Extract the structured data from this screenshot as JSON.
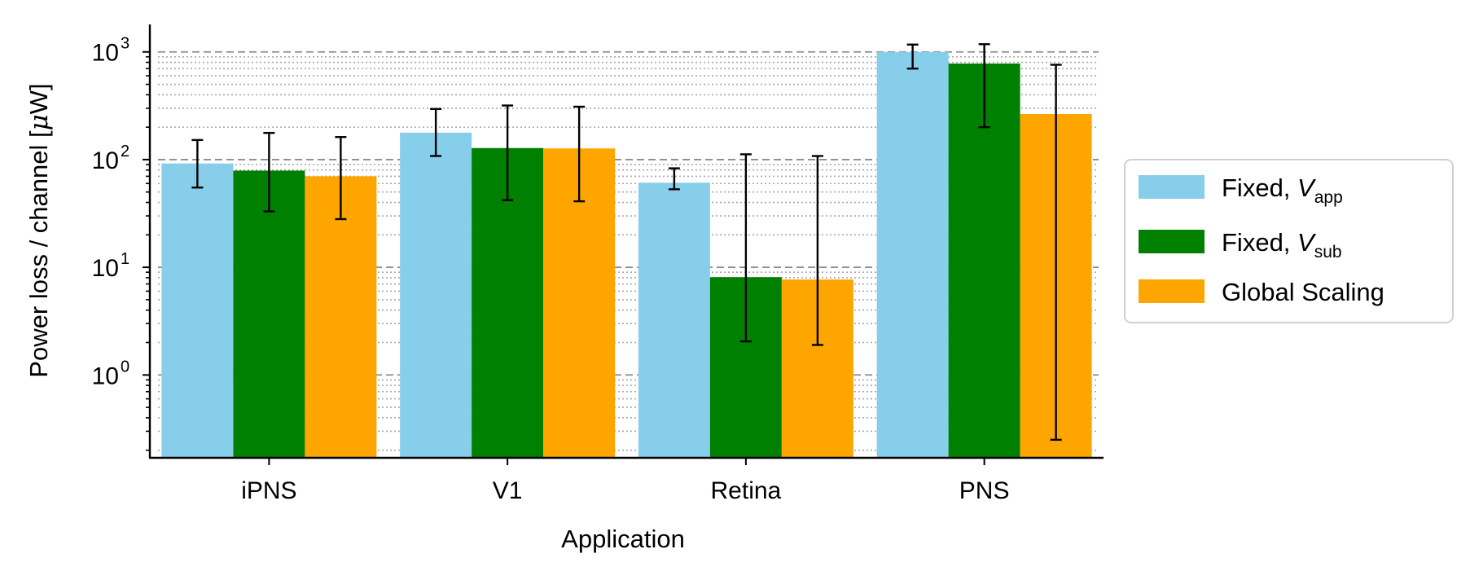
{
  "chart_data": {
    "type": "bar",
    "categories": [
      "iPNS",
      "V1",
      "Retina",
      "PNS"
    ],
    "xlabel": "Application",
    "ylabel_text": "Power loss / channel [",
    "ylabel_mu": "μ",
    "ylabel_unit": "W]",
    "yscale": "log",
    "ylim": [
      0.17,
      1800
    ],
    "ytick_base": "10",
    "ytick_exponents": [
      "0",
      "1",
      "2",
      "3"
    ],
    "grid": "major dashed, minor dotted (y)",
    "legend_position": "right, outside",
    "series": [
      {
        "name": "Fixed, ",
        "name_var": "V",
        "name_sub": "app",
        "color": "#87CEEB",
        "values": [
          92,
          178,
          61,
          1000
        ],
        "err_low": [
          55,
          108,
          53,
          700
        ],
        "err_high": [
          152,
          295,
          83,
          1170
        ]
      },
      {
        "name": "Fixed, ",
        "name_var": "V",
        "name_sub": "sub",
        "color": "#008000",
        "values": [
          79,
          128,
          8.1,
          780
        ],
        "err_low": [
          33,
          42,
          2.05,
          200
        ],
        "err_high": [
          177,
          318,
          112,
          1180
        ]
      },
      {
        "name": "Global Scaling",
        "name_var": "",
        "name_sub": "",
        "color": "#FFA500",
        "values": [
          70,
          127,
          7.7,
          265
        ],
        "err_low": [
          28,
          41,
          1.9,
          0.25
        ],
        "err_high": [
          162,
          310,
          108,
          760
        ]
      }
    ]
  }
}
